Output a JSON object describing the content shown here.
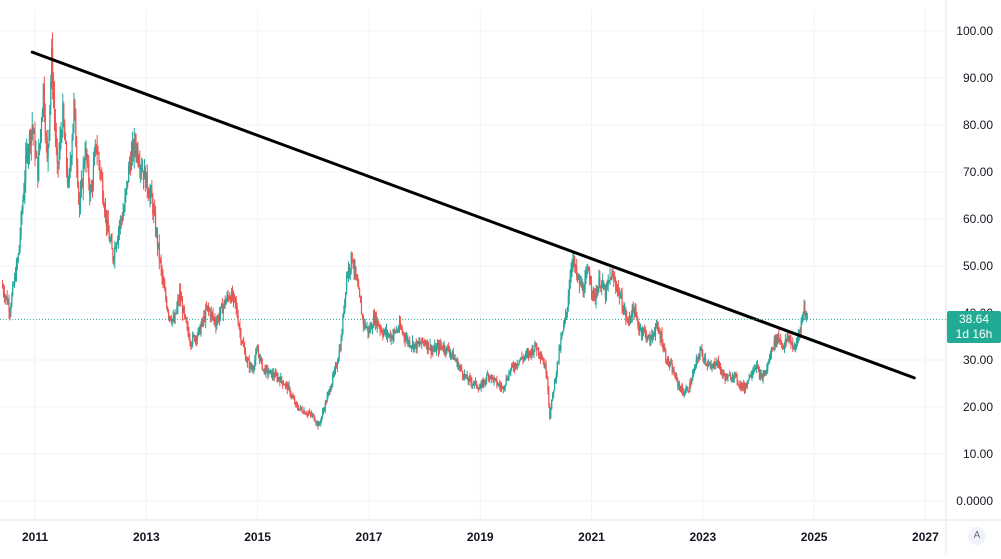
{
  "chart_data": {
    "type": "candlestick",
    "title": "",
    "xlabel": "",
    "ylabel": "",
    "ylim": [
      0,
      100
    ],
    "y_ticks": [
      "100.00",
      "90.00",
      "80.00",
      "70.00",
      "60.00",
      "50.00",
      "40.00",
      "30.00",
      "20.00",
      "10.00",
      "0.0000"
    ],
    "x_ticks": [
      "2011",
      "2013",
      "2015",
      "2017",
      "2019",
      "2021",
      "2023",
      "2025",
      "2027"
    ],
    "xlim": [
      2010.35,
      2027.95
    ],
    "grid": true,
    "price_series": [
      [
        2010.4,
        46
      ],
      [
        2010.55,
        41
      ],
      [
        2010.7,
        52
      ],
      [
        2010.85,
        74
      ],
      [
        2010.95,
        80
      ],
      [
        2011.05,
        70
      ],
      [
        2011.15,
        88
      ],
      [
        2011.22,
        72
      ],
      [
        2011.3,
        94
      ],
      [
        2011.4,
        70
      ],
      [
        2011.5,
        82
      ],
      [
        2011.6,
        66
      ],
      [
        2011.7,
        84
      ],
      [
        2011.8,
        62
      ],
      [
        2011.9,
        75
      ],
      [
        2012.0,
        65
      ],
      [
        2012.1,
        76
      ],
      [
        2012.2,
        68
      ],
      [
        2012.3,
        58
      ],
      [
        2012.4,
        52
      ],
      [
        2012.5,
        58
      ],
      [
        2012.6,
        62
      ],
      [
        2012.7,
        72
      ],
      [
        2012.8,
        76
      ],
      [
        2012.9,
        72
      ],
      [
        2013.0,
        68
      ],
      [
        2013.1,
        64
      ],
      [
        2013.2,
        55
      ],
      [
        2013.3,
        46
      ],
      [
        2013.4,
        40
      ],
      [
        2013.5,
        38
      ],
      [
        2013.6,
        44
      ],
      [
        2013.7,
        38
      ],
      [
        2013.8,
        34
      ],
      [
        2013.95,
        36
      ],
      [
        2014.1,
        41
      ],
      [
        2014.25,
        38
      ],
      [
        2014.4,
        42
      ],
      [
        2014.5,
        44
      ],
      [
        2014.6,
        42
      ],
      [
        2014.7,
        35
      ],
      [
        2014.8,
        30
      ],
      [
        2014.9,
        28
      ],
      [
        2015.0,
        32
      ],
      [
        2015.1,
        28
      ],
      [
        2015.25,
        27
      ],
      [
        2015.4,
        26
      ],
      [
        2015.55,
        24
      ],
      [
        2015.7,
        20
      ],
      [
        2015.85,
        19
      ],
      [
        2016.0,
        18
      ],
      [
        2016.1,
        16
      ],
      [
        2016.25,
        22
      ],
      [
        2016.4,
        28
      ],
      [
        2016.5,
        34
      ],
      [
        2016.6,
        48
      ],
      [
        2016.7,
        52
      ],
      [
        2016.8,
        45
      ],
      [
        2016.9,
        38
      ],
      [
        2017.0,
        36
      ],
      [
        2017.1,
        39
      ],
      [
        2017.25,
        36
      ],
      [
        2017.4,
        35
      ],
      [
        2017.55,
        37
      ],
      [
        2017.7,
        34
      ],
      [
        2017.85,
        33
      ],
      [
        2018.0,
        34
      ],
      [
        2018.15,
        32
      ],
      [
        2018.3,
        33
      ],
      [
        2018.45,
        32
      ],
      [
        2018.6,
        29
      ],
      [
        2018.75,
        26
      ],
      [
        2018.9,
        25
      ],
      [
        2019.0,
        24
      ],
      [
        2019.15,
        27
      ],
      [
        2019.3,
        25
      ],
      [
        2019.4,
        24
      ],
      [
        2019.55,
        28
      ],
      [
        2019.7,
        30
      ],
      [
        2019.85,
        31
      ],
      [
        2020.0,
        33
      ],
      [
        2020.1,
        31
      ],
      [
        2020.2,
        27
      ],
      [
        2020.25,
        18
      ],
      [
        2020.32,
        24
      ],
      [
        2020.45,
        34
      ],
      [
        2020.55,
        40
      ],
      [
        2020.65,
        52
      ],
      [
        2020.75,
        47
      ],
      [
        2020.85,
        45
      ],
      [
        2020.95,
        49
      ],
      [
        2021.05,
        43
      ],
      [
        2021.15,
        47
      ],
      [
        2021.25,
        44
      ],
      [
        2021.35,
        48
      ],
      [
        2021.45,
        46
      ],
      [
        2021.55,
        42
      ],
      [
        2021.65,
        38
      ],
      [
        2021.75,
        41
      ],
      [
        2021.85,
        37
      ],
      [
        2021.95,
        36
      ],
      [
        2022.05,
        34
      ],
      [
        2022.15,
        37
      ],
      [
        2022.25,
        35
      ],
      [
        2022.35,
        30
      ],
      [
        2022.45,
        28
      ],
      [
        2022.55,
        25
      ],
      [
        2022.65,
        23
      ],
      [
        2022.75,
        24
      ],
      [
        2022.85,
        28
      ],
      [
        2022.95,
        32
      ],
      [
        2023.05,
        30
      ],
      [
        2023.15,
        28
      ],
      [
        2023.25,
        30
      ],
      [
        2023.35,
        27
      ],
      [
        2023.45,
        26
      ],
      [
        2023.55,
        27
      ],
      [
        2023.65,
        25
      ],
      [
        2023.75,
        24
      ],
      [
        2023.85,
        27
      ],
      [
        2023.95,
        29
      ],
      [
        2024.05,
        26
      ],
      [
        2024.15,
        28
      ],
      [
        2024.25,
        33
      ],
      [
        2024.35,
        35
      ],
      [
        2024.45,
        33
      ],
      [
        2024.55,
        35
      ],
      [
        2024.65,
        32
      ],
      [
        2024.75,
        37
      ],
      [
        2024.82,
        41
      ],
      [
        2024.88,
        38.64
      ]
    ],
    "trendline": {
      "start": [
        2010.95,
        95.5
      ],
      "end": [
        2026.8,
        26.2
      ]
    },
    "last_price": 38.64,
    "last_price_label": "38.64",
    "countdown_label": "1d 16h",
    "colors": {
      "up": "#26a69a",
      "down": "#ef5350",
      "trendline": "#000000",
      "price_badge": "#22ab94",
      "grid": "#f0f3fa",
      "axis_text": "#131722"
    }
  },
  "axis_mode_button": "A"
}
